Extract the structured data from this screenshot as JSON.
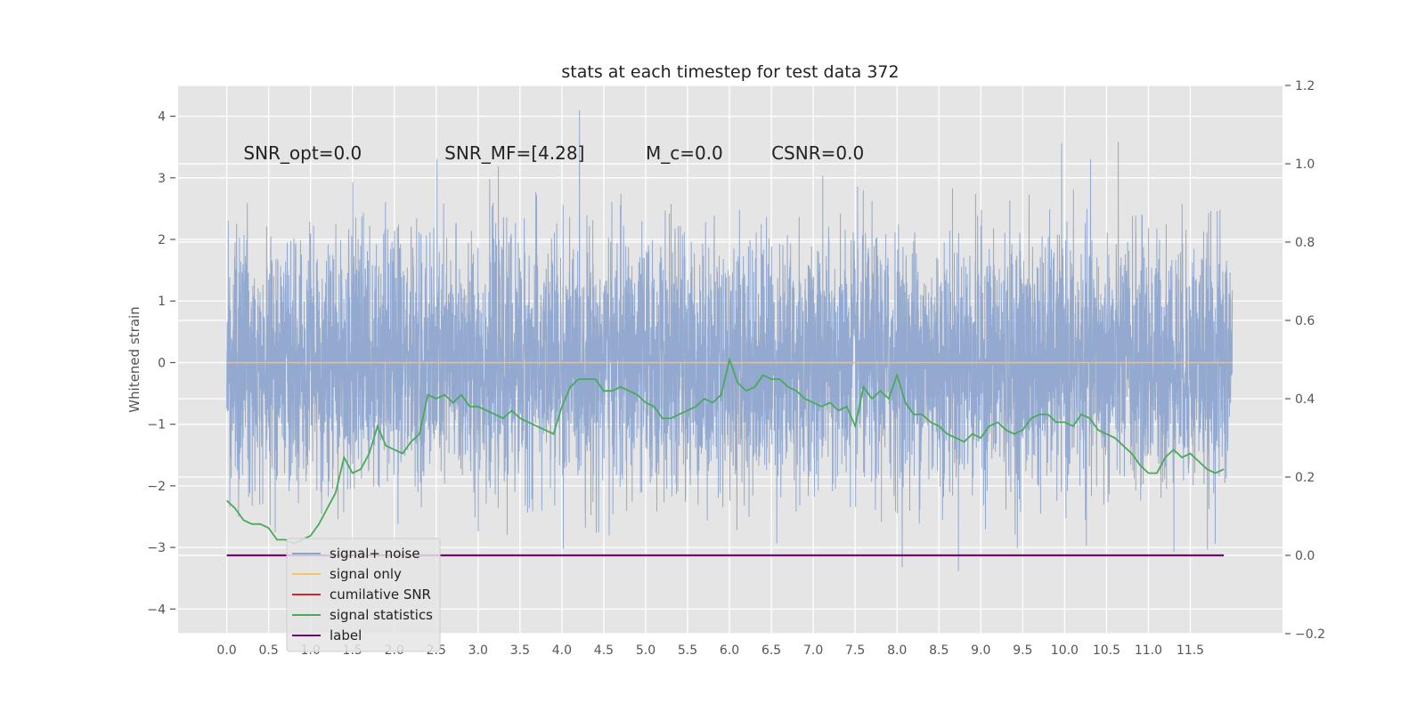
{
  "chart_data": {
    "type": "line",
    "title": "stats at each timestep for test data 372",
    "ylabel": "Whitened strain",
    "xlabel": "",
    "xlim": [
      -0.58,
      12.6
    ],
    "ylim": [
      -4.4,
      4.5
    ],
    "y2lim": [
      -0.2,
      1.2
    ],
    "grid": true,
    "legend_position": "lower-left",
    "x_ticks": [
      "0.0",
      "0.5",
      "1.0",
      "1.5",
      "2.0",
      "2.5",
      "3.0",
      "3.5",
      "4.0",
      "4.5",
      "5.0",
      "5.5",
      "6.0",
      "6.5",
      "7.0",
      "7.5",
      "8.0",
      "8.5",
      "9.0",
      "9.5",
      "10.0",
      "10.5",
      "11.0",
      "11.5"
    ],
    "y_ticks": [
      "4",
      "3",
      "2",
      "1",
      "0",
      "−1",
      "−2",
      "−3",
      "−4"
    ],
    "y2_ticks": [
      "1.2",
      "1.0",
      "0.8",
      "0.6",
      "0.4",
      "0.2",
      "0.0",
      "−0.2"
    ],
    "annotations": [
      {
        "text": "SNR_opt=0.0",
        "x": 0.2,
        "y": 3.3
      },
      {
        "text": "SNR_MF=[4.28]",
        "x": 2.6,
        "y": 3.3
      },
      {
        "text": "M_c=0.0",
        "x": 5.0,
        "y": 3.3
      },
      {
        "text": "CSNR=0.0",
        "x": 6.5,
        "y": 3.3
      }
    ],
    "series": [
      {
        "name": "signal+ noise",
        "color": "#8ea5cd",
        "axis": "left",
        "x_range": [
          0.0,
          12.0
        ],
        "amplitude_sd": 1.0,
        "peaks": [
          4.1,
          -3.95
        ]
      },
      {
        "name": "signal only",
        "color": "#f5c26b",
        "axis": "left",
        "x": [
          0.0,
          12.0
        ],
        "y": [
          0.0,
          0.0
        ]
      },
      {
        "name": "cumilative SNR",
        "color": "#d62728",
        "axis": "right",
        "x": [],
        "y": []
      },
      {
        "name": "signal statistics",
        "color": "#4aaa5a",
        "axis": "right",
        "x": [
          0.0,
          0.1,
          0.2,
          0.3,
          0.4,
          0.5,
          0.6,
          0.7,
          0.8,
          0.9,
          1.0,
          1.1,
          1.2,
          1.3,
          1.4,
          1.5,
          1.6,
          1.7,
          1.8,
          1.9,
          2.0,
          2.1,
          2.2,
          2.3,
          2.4,
          2.5,
          2.6,
          2.7,
          2.8,
          2.9,
          3.0,
          3.1,
          3.2,
          3.3,
          3.4,
          3.5,
          3.6,
          3.7,
          3.8,
          3.9,
          4.0,
          4.1,
          4.2,
          4.3,
          4.4,
          4.5,
          4.6,
          4.7,
          4.8,
          4.9,
          5.0,
          5.1,
          5.2,
          5.3,
          5.4,
          5.5,
          5.6,
          5.7,
          5.8,
          5.9,
          6.0,
          6.1,
          6.2,
          6.3,
          6.4,
          6.5,
          6.6,
          6.7,
          6.8,
          6.9,
          7.0,
          7.1,
          7.2,
          7.3,
          7.4,
          7.5,
          7.6,
          7.7,
          7.8,
          7.9,
          8.0,
          8.1,
          8.2,
          8.3,
          8.4,
          8.5,
          8.6,
          8.7,
          8.8,
          8.9,
          9.0,
          9.1,
          9.2,
          9.3,
          9.4,
          9.5,
          9.6,
          9.7,
          9.8,
          9.9,
          10.0,
          10.1,
          10.2,
          10.3,
          10.4,
          10.5,
          10.6,
          10.7,
          10.8,
          10.9,
          11.0,
          11.1,
          11.2,
          11.3,
          11.4,
          11.5,
          11.6,
          11.7,
          11.8,
          11.9
        ],
        "y": [
          0.14,
          0.12,
          0.09,
          0.08,
          0.08,
          0.07,
          0.04,
          0.04,
          0.03,
          0.04,
          0.05,
          0.08,
          0.12,
          0.16,
          0.25,
          0.21,
          0.22,
          0.26,
          0.33,
          0.28,
          0.27,
          0.26,
          0.29,
          0.31,
          0.41,
          0.4,
          0.41,
          0.39,
          0.41,
          0.38,
          0.38,
          0.37,
          0.36,
          0.35,
          0.37,
          0.35,
          0.34,
          0.33,
          0.32,
          0.31,
          0.38,
          0.43,
          0.45,
          0.45,
          0.45,
          0.42,
          0.42,
          0.43,
          0.42,
          0.41,
          0.39,
          0.38,
          0.35,
          0.35,
          0.36,
          0.37,
          0.38,
          0.4,
          0.39,
          0.41,
          0.5,
          0.44,
          0.42,
          0.43,
          0.46,
          0.45,
          0.45,
          0.43,
          0.42,
          0.4,
          0.39,
          0.38,
          0.39,
          0.37,
          0.38,
          0.33,
          0.43,
          0.4,
          0.42,
          0.4,
          0.46,
          0.39,
          0.36,
          0.36,
          0.34,
          0.33,
          0.31,
          0.3,
          0.29,
          0.31,
          0.3,
          0.33,
          0.34,
          0.32,
          0.31,
          0.32,
          0.35,
          0.36,
          0.36,
          0.34,
          0.34,
          0.33,
          0.36,
          0.35,
          0.32,
          0.31,
          0.3,
          0.28,
          0.26,
          0.23,
          0.21,
          0.21,
          0.25,
          0.27,
          0.25,
          0.26,
          0.24,
          0.22,
          0.21,
          0.22
        ]
      },
      {
        "name": "label",
        "color": "#750a75",
        "axis": "right",
        "x": [
          0.0,
          11.9
        ],
        "y": [
          0.0,
          0.0
        ]
      }
    ]
  }
}
